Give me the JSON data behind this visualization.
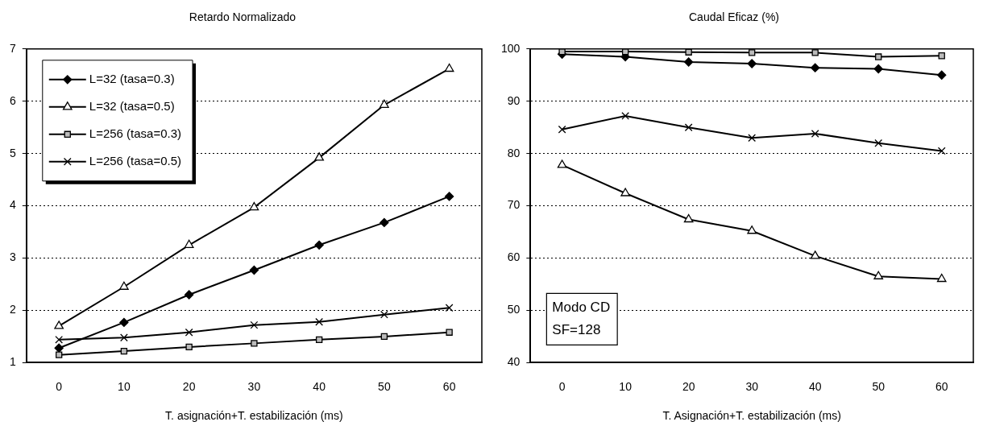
{
  "chart_data": [
    {
      "type": "line",
      "title": "Retardo Normalizado",
      "xlabel": "T. asignación+T. estabilización (ms)",
      "categories": [
        "0",
        "10",
        "20",
        "30",
        "40",
        "50",
        "60"
      ],
      "series": [
        {
          "name": "L=32 (tasa=0.3)",
          "color": "#000000",
          "marker": "diamond",
          "values": [
            1.28,
            1.77,
            2.3,
            2.77,
            3.25,
            3.68,
            4.18
          ]
        },
        {
          "name": "L=32 (tasa=0.5)",
          "color": "#000000",
          "marker": "triangle",
          "values": [
            1.7,
            2.45,
            3.25,
            3.97,
            4.92,
            5.93,
            6.62
          ]
        },
        {
          "name": "L=256 (tasa=0.3)",
          "color": "#000000",
          "marker": "square",
          "values": [
            1.15,
            1.22,
            1.3,
            1.37,
            1.44,
            1.5,
            1.58
          ]
        },
        {
          "name": "L=256 (tasa=0.5)",
          "color": "#000000",
          "marker": "cross",
          "values": [
            1.44,
            1.48,
            1.58,
            1.72,
            1.78,
            1.92,
            2.05
          ]
        }
      ],
      "ylim": [
        1,
        7
      ],
      "yticks": [
        1,
        2,
        3,
        4,
        5,
        6,
        7
      ],
      "grid": "y",
      "legend": "top left",
      "line_style": "solid"
    },
    {
      "type": "line",
      "title": "Caudal Eficaz (%)",
      "xlabel": "T. Asignación+T. estabilización (ms)",
      "categories": [
        "0",
        "10",
        "20",
        "30",
        "40",
        "50",
        "60"
      ],
      "series": [
        {
          "color": "#000000",
          "marker": "diamond",
          "values": [
            99,
            98.5,
            97.5,
            97.2,
            96.4,
            96.2,
            95
          ]
        },
        {
          "color": "#000000",
          "marker": "triangle",
          "values": [
            77.8,
            72.4,
            67.4,
            65.2,
            60.4,
            56.5,
            56
          ]
        },
        {
          "color": "#000000",
          "marker": "square",
          "values": [
            99.5,
            99.5,
            99.4,
            99.3,
            99.3,
            98.5,
            98.7
          ]
        },
        {
          "color": "#000000",
          "marker": "cross",
          "values": [
            84.6,
            87.2,
            85,
            83,
            83.8,
            82,
            80.5
          ]
        }
      ],
      "ylim": [
        40,
        100
      ],
      "yticks": [
        40,
        50,
        60,
        70,
        80,
        90,
        100
      ],
      "grid": "y",
      "legend": false,
      "line_style": "solid",
      "annotations": [
        "Modo CD",
        "SF=128"
      ]
    }
  ]
}
